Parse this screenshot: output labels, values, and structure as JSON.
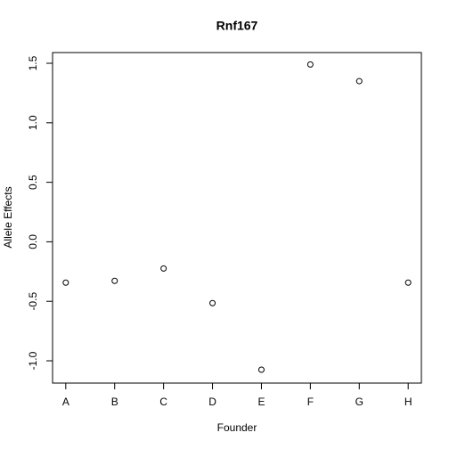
{
  "chart_data": {
    "type": "scatter",
    "title": "Rnf167",
    "x_label": "Founder",
    "y_label": "Allele Effects",
    "categories": [
      "A",
      "B",
      "C",
      "D",
      "E",
      "F",
      "G",
      "H"
    ],
    "values": [
      -0.343,
      -0.328,
      -0.224,
      -0.515,
      -1.075,
      1.49,
      1.35,
      -0.343
    ],
    "color": "#000000",
    "ylim": [
      -1.187,
      1.59
    ],
    "yticks": [
      {
        "value": -1,
        "label": "-1.0"
      },
      -0.5,
      {
        "value": 0,
        "label": "0.0"
      },
      0.5,
      {
        "value": 1,
        "label": "1.0"
      },
      1.5
    ]
  }
}
